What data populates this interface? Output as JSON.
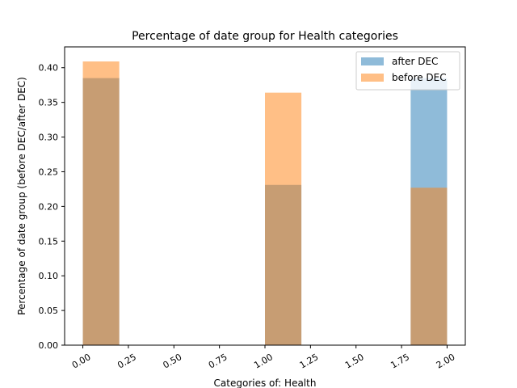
{
  "chart_data": {
    "type": "bar",
    "title": "Percentage of date group for Health  categories",
    "xlabel": "Categories of: Health",
    "ylabel": "Percentage of date group (before DEC/after DEC)",
    "xlim": [
      -0.1,
      2.1
    ],
    "ylim": [
      0,
      0.43
    ],
    "xticks": [
      0.0,
      0.25,
      0.5,
      0.75,
      1.0,
      1.25,
      1.5,
      1.75,
      2.0
    ],
    "xtick_labels": [
      "0.00",
      "0.25",
      "0.50",
      "0.75",
      "1.00",
      "1.25",
      "1.50",
      "1.75",
      "2.00"
    ],
    "yticks": [
      0.0,
      0.05,
      0.1,
      0.15,
      0.2,
      0.25,
      0.3,
      0.35,
      0.4
    ],
    "ytick_labels": [
      "0.00",
      "0.05",
      "0.10",
      "0.15",
      "0.20",
      "0.25",
      "0.30",
      "0.35",
      "0.40"
    ],
    "grid": false,
    "legend_position": "top-right",
    "overlay_color": "#c69c6d",
    "series": [
      {
        "name": "after DEC",
        "color": "#1f77b4",
        "opacity": 0.5,
        "bins": [
          {
            "x0": 0.0,
            "x1": 0.2,
            "value": 0.385
          },
          {
            "x0": 1.0,
            "x1": 1.2,
            "value": 0.231
          },
          {
            "x0": 1.8,
            "x1": 2.0,
            "value": 0.385
          }
        ]
      },
      {
        "name": "before DEC",
        "color": "#ff7f0e",
        "opacity": 0.5,
        "bins": [
          {
            "x0": 0.0,
            "x1": 0.2,
            "value": 0.409
          },
          {
            "x0": 1.0,
            "x1": 1.2,
            "value": 0.364
          },
          {
            "x0": 1.8,
            "x1": 2.0,
            "value": 0.227
          }
        ]
      }
    ]
  }
}
